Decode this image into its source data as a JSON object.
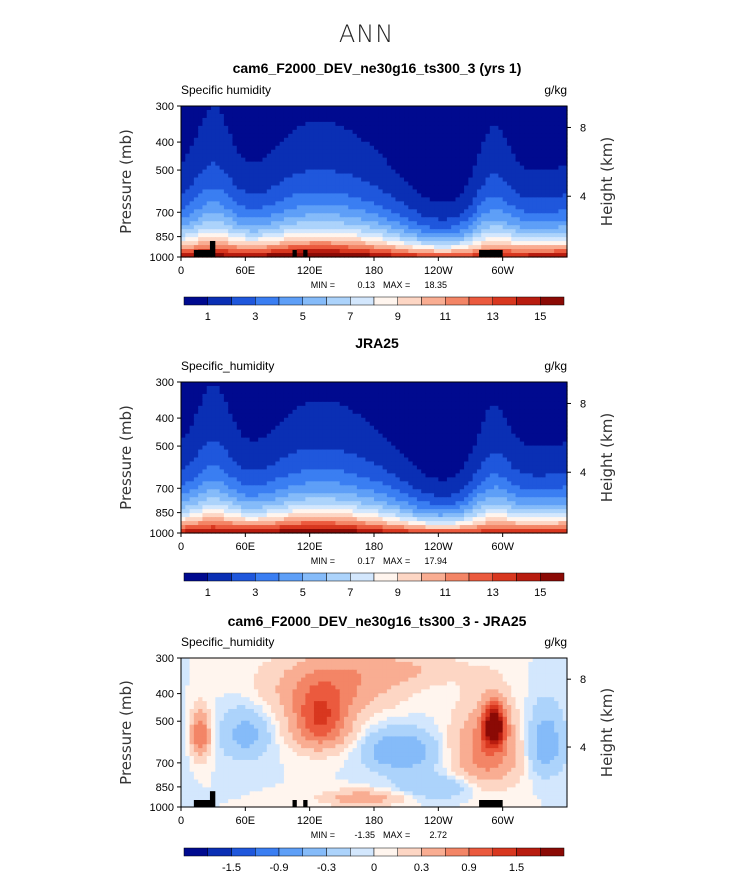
{
  "page_title": "ANN",
  "colors": {
    "land": "#000000",
    "abs_palette": [
      "#000a8f",
      "#0a2fb4",
      "#1f57dc",
      "#3a7ef2",
      "#5e9ff7",
      "#85bbf9",
      "#acd3fb",
      "#d3e7fd",
      "#fff5ee",
      "#fdd6c4",
      "#f9ad92",
      "#f38566",
      "#eb5a3e",
      "#d8371f",
      "#b81c0f",
      "#8b0a05"
    ],
    "diff_palette": [
      "#000a8f",
      "#0a2fb4",
      "#1f57dc",
      "#3a7ef2",
      "#5e9ff7",
      "#85bbf9",
      "#acd3fb",
      "#d3e7fd",
      "#fff5ee",
      "#fdd6c4",
      "#f9ad92",
      "#f38566",
      "#eb5a3e",
      "#d8371f",
      "#b81c0f",
      "#8b0a05"
    ]
  },
  "chart_data": [
    {
      "type": "heatmap",
      "title": "cam6_F2000_DEV_ne30g16_ts300_3 (yrs 1)",
      "left_label": "Specific humidity",
      "right_label": "g/kg",
      "ylabel": "Pressure (mb)",
      "y2label": "Height (km)",
      "x_ticks": [
        "0",
        "60E",
        "120E",
        "180",
        "120W",
        "60W"
      ],
      "x_tick_lon": [
        0,
        60,
        120,
        180,
        240,
        300
      ],
      "xlim": [
        0,
        360
      ],
      "y_ticks": [
        "300",
        "400",
        "500",
        "700",
        "850",
        "1000"
      ],
      "y_tick_p": [
        300,
        400,
        500,
        700,
        850,
        1000
      ],
      "ylim": [
        1000,
        300
      ],
      "y_scale": "log",
      "y2_ticks": [
        "8",
        "4"
      ],
      "y2_tick_p": [
        356,
        616
      ],
      "stats": {
        "min_label": "MIN =",
        "min": "0.13",
        "max_label": "MAX =",
        "max": "18.35"
      },
      "colorbar_labels": [
        "1",
        "3",
        "5",
        "7",
        "9",
        "11",
        "13",
        "15"
      ],
      "levels": [
        1,
        2,
        3,
        4,
        5,
        6,
        7,
        8,
        9,
        10,
        11,
        12,
        13,
        14,
        15
      ],
      "palette": "abs",
      "field": "model",
      "topo": true
    },
    {
      "type": "heatmap",
      "title": "JRA25",
      "left_label": "Specific_humidity",
      "right_label": "g/kg",
      "ylabel": "Pressure (mb)",
      "y2label": "Height (km)",
      "x_ticks": [
        "0",
        "60E",
        "120E",
        "180",
        "120W",
        "60W"
      ],
      "x_tick_lon": [
        0,
        60,
        120,
        180,
        240,
        300
      ],
      "xlim": [
        0,
        360
      ],
      "y_ticks": [
        "300",
        "400",
        "500",
        "700",
        "850",
        "1000"
      ],
      "y_tick_p": [
        300,
        400,
        500,
        700,
        850,
        1000
      ],
      "ylim": [
        1000,
        300
      ],
      "y_scale": "log",
      "y2_ticks": [
        "8",
        "4"
      ],
      "y2_tick_p": [
        356,
        616
      ],
      "stats": {
        "min_label": "MIN =",
        "min": "0.17",
        "max_label": "MAX =",
        "max": "17.94"
      },
      "colorbar_labels": [
        "1",
        "3",
        "5",
        "7",
        "9",
        "11",
        "13",
        "15"
      ],
      "levels": [
        1,
        2,
        3,
        4,
        5,
        6,
        7,
        8,
        9,
        10,
        11,
        12,
        13,
        14,
        15
      ],
      "palette": "abs",
      "field": "obs",
      "topo": false
    },
    {
      "type": "heatmap",
      "title": "cam6_F2000_DEV_ne30g16_ts300_3 - JRA25",
      "left_label": "Specific_humidity",
      "right_label": "g/kg",
      "ylabel": "Pressure (mb)",
      "y2label": "Height (km)",
      "x_ticks": [
        "0",
        "60E",
        "120E",
        "180",
        "120W",
        "60W"
      ],
      "x_tick_lon": [
        0,
        60,
        120,
        180,
        240,
        300
      ],
      "xlim": [
        0,
        360
      ],
      "y_ticks": [
        "300",
        "400",
        "500",
        "700",
        "850",
        "1000"
      ],
      "y_tick_p": [
        300,
        400,
        500,
        700,
        850,
        1000
      ],
      "ylim": [
        1000,
        300
      ],
      "y_scale": "log",
      "y2_ticks": [
        "8",
        "4"
      ],
      "y2_tick_p": [
        356,
        616
      ],
      "stats": {
        "min_label": "MIN =",
        "min": "-1.35",
        "max_label": "MAX =",
        "max": "2.72"
      },
      "colorbar_labels": [
        "-1.5",
        "-0.9",
        "-0.3",
        "0",
        "0.3",
        "0.9",
        "1.5"
      ],
      "levels": [
        -1.8,
        -1.5,
        -1.2,
        -0.9,
        -0.6,
        -0.3,
        -0.1,
        0,
        0.1,
        0.3,
        0.6,
        0.9,
        1.2,
        1.5,
        1.8
      ],
      "palette": "diff",
      "field": "diff",
      "topo": true
    }
  ]
}
